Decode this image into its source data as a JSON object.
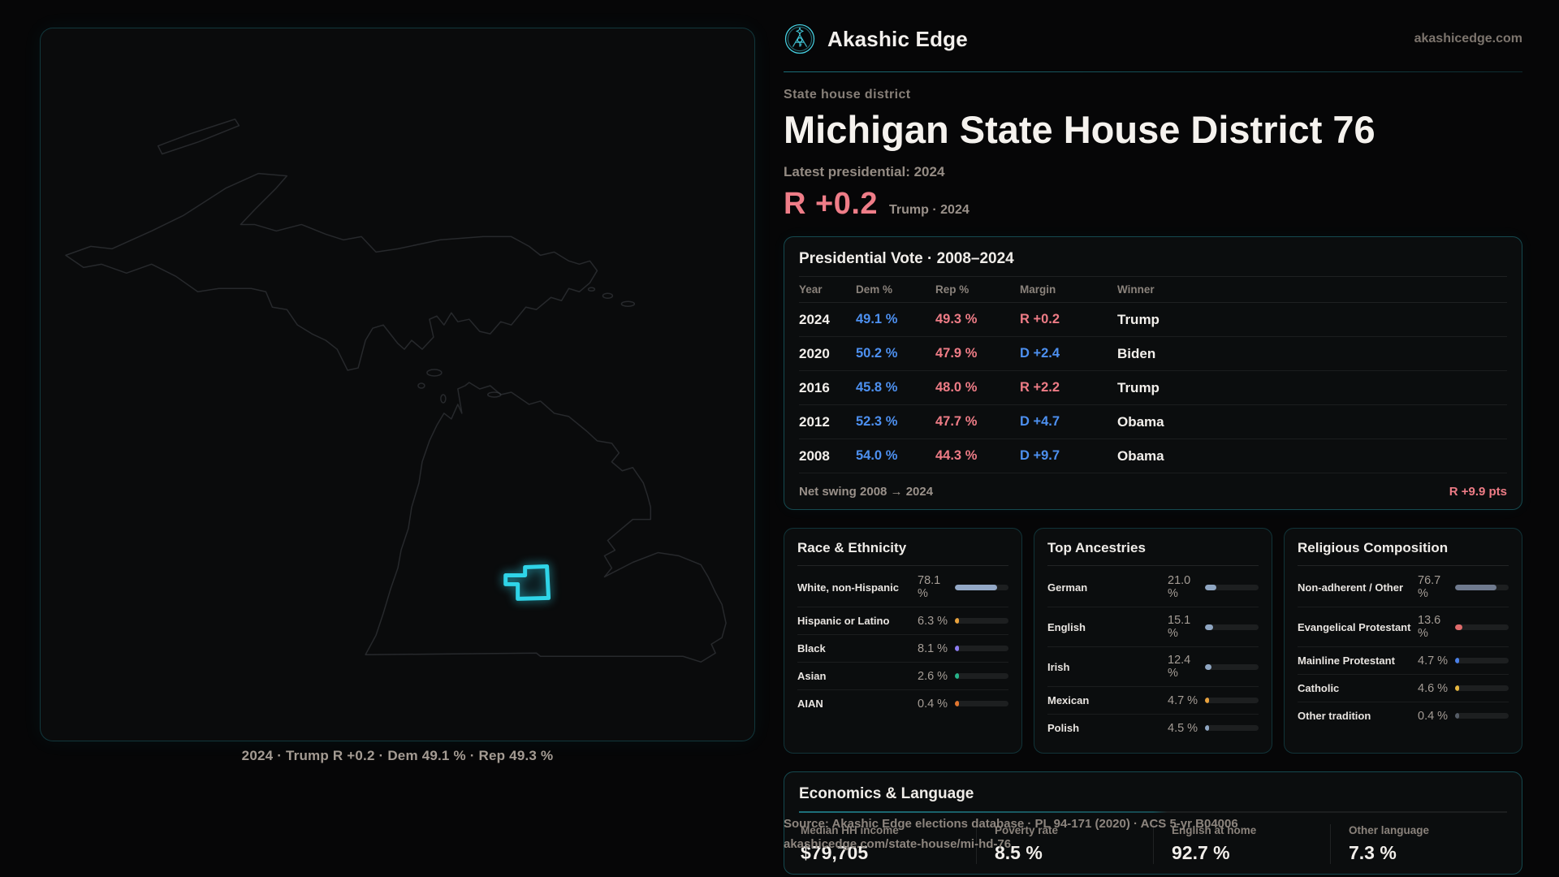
{
  "brand": {
    "name": "Akashic Edge",
    "site": "akashicedge.com"
  },
  "page": {
    "kicker": "State house district",
    "title": "Michigan State House District 76",
    "latest_label": "Latest presidential: 2024",
    "hero_margin": "R +0.2",
    "hero_context": "Trump · 2024"
  },
  "map": {
    "caption": "2024 · Trump R +0.2 · Dem 49.1 % · Rep 49.3 %"
  },
  "vote_table": {
    "title": "Presidential Vote · 2008–2024",
    "columns": [
      "Year",
      "Dem %",
      "Rep %",
      "Margin",
      "Winner"
    ],
    "rows": [
      {
        "year": "2024",
        "dem": "49.1 %",
        "rep": "49.3 %",
        "margin": "R +0.2",
        "margin_party": "R",
        "winner": "Trump"
      },
      {
        "year": "2020",
        "dem": "50.2 %",
        "rep": "47.9 %",
        "margin": "D +2.4",
        "margin_party": "D",
        "winner": "Biden"
      },
      {
        "year": "2016",
        "dem": "45.8 %",
        "rep": "48.0 %",
        "margin": "R +2.2",
        "margin_party": "R",
        "winner": "Trump"
      },
      {
        "year": "2012",
        "dem": "52.3 %",
        "rep": "47.7 %",
        "margin": "D +4.7",
        "margin_party": "D",
        "winner": "Obama"
      },
      {
        "year": "2008",
        "dem": "54.0 %",
        "rep": "44.3 %",
        "margin": "D +9.7",
        "margin_party": "D",
        "winner": "Obama"
      }
    ],
    "footer_label": "Net swing 2008 → 2024",
    "footer_value": "R +9.9 pts"
  },
  "chart_data": [
    {
      "type": "bar",
      "title": "Race & Ethnicity",
      "categories": [
        "White, non-Hispanic",
        "Hispanic or Latino",
        "Black",
        "Asian",
        "AIAN"
      ],
      "values": [
        78.1,
        6.3,
        8.1,
        2.6,
        0.4
      ]
    },
    {
      "type": "bar",
      "title": "Top Ancestries",
      "categories": [
        "German",
        "English",
        "Irish",
        "Mexican",
        "Polish"
      ],
      "values": [
        21.0,
        15.1,
        12.4,
        4.7,
        4.5
      ]
    },
    {
      "type": "bar",
      "title": "Religious Composition",
      "categories": [
        "Non-adherent / Other",
        "Evangelical Protestant",
        "Mainline Protestant",
        "Catholic",
        "Other tradition"
      ],
      "values": [
        76.7,
        13.6,
        4.7,
        4.6,
        0.4
      ]
    }
  ],
  "panels": {
    "race": {
      "title": "Race & Ethnicity",
      "rows": [
        {
          "label": "White, non-Hispanic",
          "value": "78.1 %",
          "pct": 78.1,
          "color": "#93a8c6"
        },
        {
          "label": "Hispanic or Latino",
          "value": "6.3 %",
          "pct": 6.3,
          "color": "#e9a23d"
        },
        {
          "label": "Black",
          "value": "8.1 %",
          "pct": 8.1,
          "color": "#8d7cf2"
        },
        {
          "label": "Asian",
          "value": "2.6 %",
          "pct": 2.6,
          "color": "#27b389"
        },
        {
          "label": "AIAN",
          "value": "0.4 %",
          "pct": 0.4,
          "color": "#e2762f"
        }
      ]
    },
    "ancestries": {
      "title": "Top Ancestries",
      "rows": [
        {
          "label": "German",
          "value": "21.0 %",
          "pct": 21.0,
          "color": "#8fa6c2"
        },
        {
          "label": "English",
          "value": "15.1 %",
          "pct": 15.1,
          "color": "#8fa6c2"
        },
        {
          "label": "Irish",
          "value": "12.4 %",
          "pct": 12.4,
          "color": "#8fa6c2"
        },
        {
          "label": "Mexican",
          "value": "4.7 %",
          "pct": 4.7,
          "color": "#e9a23d"
        },
        {
          "label": "Polish",
          "value": "4.5 %",
          "pct": 4.5,
          "color": "#8fa6c2"
        }
      ]
    },
    "religion": {
      "title": "Religious Composition",
      "rows": [
        {
          "label": "Non-adherent / Other",
          "value": "76.7 %",
          "pct": 76.7,
          "color": "#6f7a8e"
        },
        {
          "label": "Evangelical Protestant",
          "value": "13.6 %",
          "pct": 13.6,
          "color": "#df6b6b"
        },
        {
          "label": "Mainline Protestant",
          "value": "4.7 %",
          "pct": 4.7,
          "color": "#4a80e8"
        },
        {
          "label": "Catholic",
          "value": "4.6 %",
          "pct": 4.6,
          "color": "#e6b63f"
        },
        {
          "label": "Other tradition",
          "value": "0.4 %",
          "pct": 0.4,
          "color": "#555c66"
        }
      ]
    },
    "economics": {
      "title": "Economics & Language",
      "stats": [
        {
          "label": "Median HH income",
          "value": "$79,705"
        },
        {
          "label": "Poverty rate",
          "value": "8.5 %"
        },
        {
          "label": "English at home",
          "value": "92.7 %"
        },
        {
          "label": "Other language",
          "value": "7.3 %"
        }
      ]
    }
  },
  "source": {
    "line1": "Source: Akashic Edge elections database · PL 94-171 (2020) · ACS 5-yr B04006",
    "line2": "akashicedge.com/state-house/mi-hd-76"
  },
  "colors": {
    "accent": "#2fd4e8",
    "dem": "#4d90f0",
    "rep": "#ee7c86"
  }
}
